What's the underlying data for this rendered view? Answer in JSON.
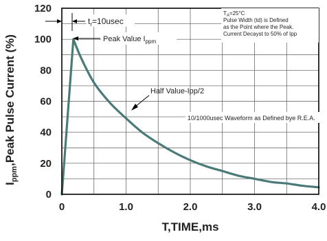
{
  "chart_data": {
    "type": "line",
    "title": "",
    "xlabel": "T,TIME,ms",
    "ylabel": "Ippm,Peak Pulse Current (%)",
    "ylabel_parts": [
      "I",
      "ppm",
      ",Peak Pulse Current (%)"
    ],
    "xlim": [
      0,
      4.0
    ],
    "ylim": [
      0,
      120
    ],
    "x_ticks": [
      0,
      1.0,
      2.0,
      3.0,
      4.0
    ],
    "x_tick_labels": [
      "0",
      "1.0",
      "2.0",
      "3.0",
      "4.0"
    ],
    "y_ticks": [
      0,
      20,
      40,
      60,
      80,
      100,
      120
    ],
    "y_tick_labels": [
      "0",
      "20",
      "40",
      "60",
      "80",
      "100",
      "120"
    ],
    "grid": true,
    "series": [
      {
        "color": "#4a7a78",
        "x": [
          0,
          0.18,
          0.3,
          0.5,
          0.75,
          1.0,
          1.25,
          1.5,
          1.75,
          2.0,
          2.25,
          2.5,
          2.75,
          3.0,
          3.25,
          3.5,
          3.75,
          4.0
        ],
        "y": [
          0,
          100,
          88,
          72,
          59,
          49,
          40,
          33,
          27,
          22,
          18,
          15,
          12,
          10,
          8,
          7,
          5.5,
          4.5
        ]
      }
    ],
    "annotations": {
      "tr_parts": [
        "t",
        "r",
        "=10usec"
      ],
      "peak_parts": [
        "Peak  Value   I",
        "ppm"
      ],
      "half_value": "Half Value-Ipp/2",
      "waveform": "10/1000usec  Waveform as Defined bye R.E.A.",
      "conditions": [
        [
          "T",
          "A",
          "=25°C"
        ],
        [
          "Pulse   Width (td) is  Defined",
          "",
          ""
        ],
        [
          "as the Point  where the Peak.",
          "",
          ""
        ],
        [
          "Current  Decayst to 50% of Ipp",
          "",
          ""
        ]
      ]
    }
  }
}
